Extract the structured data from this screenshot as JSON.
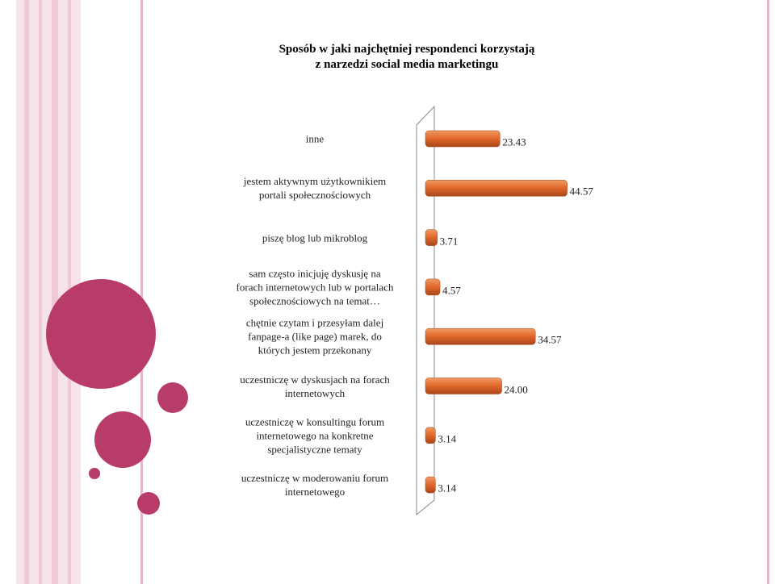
{
  "chart_data": {
    "type": "hbar",
    "title": "Sposób w jaki najchętniej respondenci korzystają\nz narzedzi social media marketingu",
    "categories": [
      "inne",
      "jestem aktywnym  użytkownikiem\nportali społecznościowych",
      "piszę blog lub mikroblog",
      "sam często inicjuję dyskusję na\nforach internetowych lub w portalach\nspołecznościowych na temat…",
      "chętnie czytam i przesyłam dalej\nfanpage-a (like page) marek, do\nktórych jestem przekonany",
      "uczestniczę w dyskusjach  na forach\ninternetowych",
      "uczestniczę w konsultingu forum\ninternetowego na konkretne\nspecjalistyczne  tematy",
      "uczestniczę w moderowaniu forum\ninternetowego"
    ],
    "values": [
      23.43,
      44.57,
      3.71,
      4.57,
      34.57,
      24,
      3.14,
      3.14
    ],
    "value_labels": [
      "23.43",
      "44.57",
      "3.71",
      "4.57",
      "34.57",
      "24.00",
      "3.14",
      "3.14"
    ],
    "color": "#e0662a",
    "xlim": [
      0,
      50
    ]
  }
}
